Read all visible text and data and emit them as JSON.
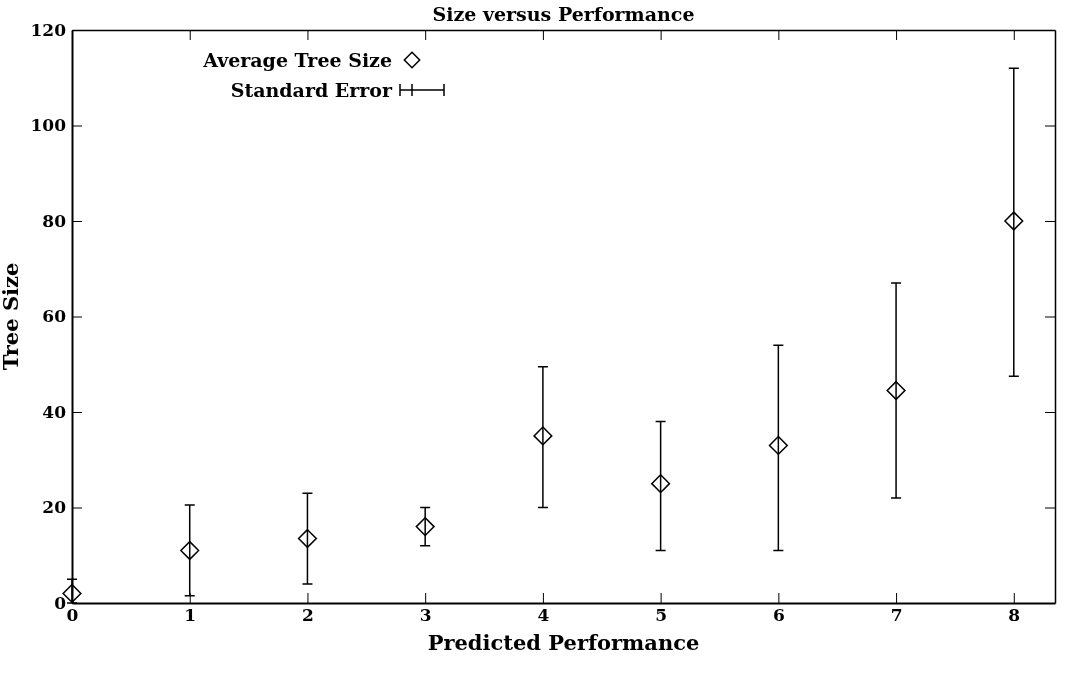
{
  "chart_data": {
    "type": "scatter",
    "title": "Size versus Performance",
    "xlabel": "Predicted Performance",
    "ylabel": "Tree Size",
    "x": [
      0,
      1,
      2,
      3,
      4,
      5,
      6,
      7,
      8
    ],
    "series": [
      {
        "name": "Average Tree Size",
        "color": "#000000",
        "values": [
          2,
          11,
          13.5,
          16,
          35,
          25,
          33,
          44.5,
          80
        ],
        "errors": [
          [
            0,
            5
          ],
          [
            1.5,
            20.5
          ],
          [
            4,
            23
          ],
          [
            12,
            20
          ],
          [
            20,
            49.5
          ],
          [
            11,
            38
          ],
          [
            11,
            54
          ],
          [
            22,
            67
          ],
          [
            47.5,
            112
          ]
        ]
      }
    ],
    "annotations": [
      "Standard Error"
    ],
    "xlim": [
      0,
      8.35
    ],
    "xticks": [
      0,
      1,
      2,
      3,
      4,
      5,
      6,
      7,
      8
    ],
    "ylim": [
      0,
      120
    ],
    "yticks": [
      0,
      20,
      40,
      60,
      80,
      100,
      120
    ],
    "marker": "diamond",
    "legend": "top left",
    "grid": false
  }
}
